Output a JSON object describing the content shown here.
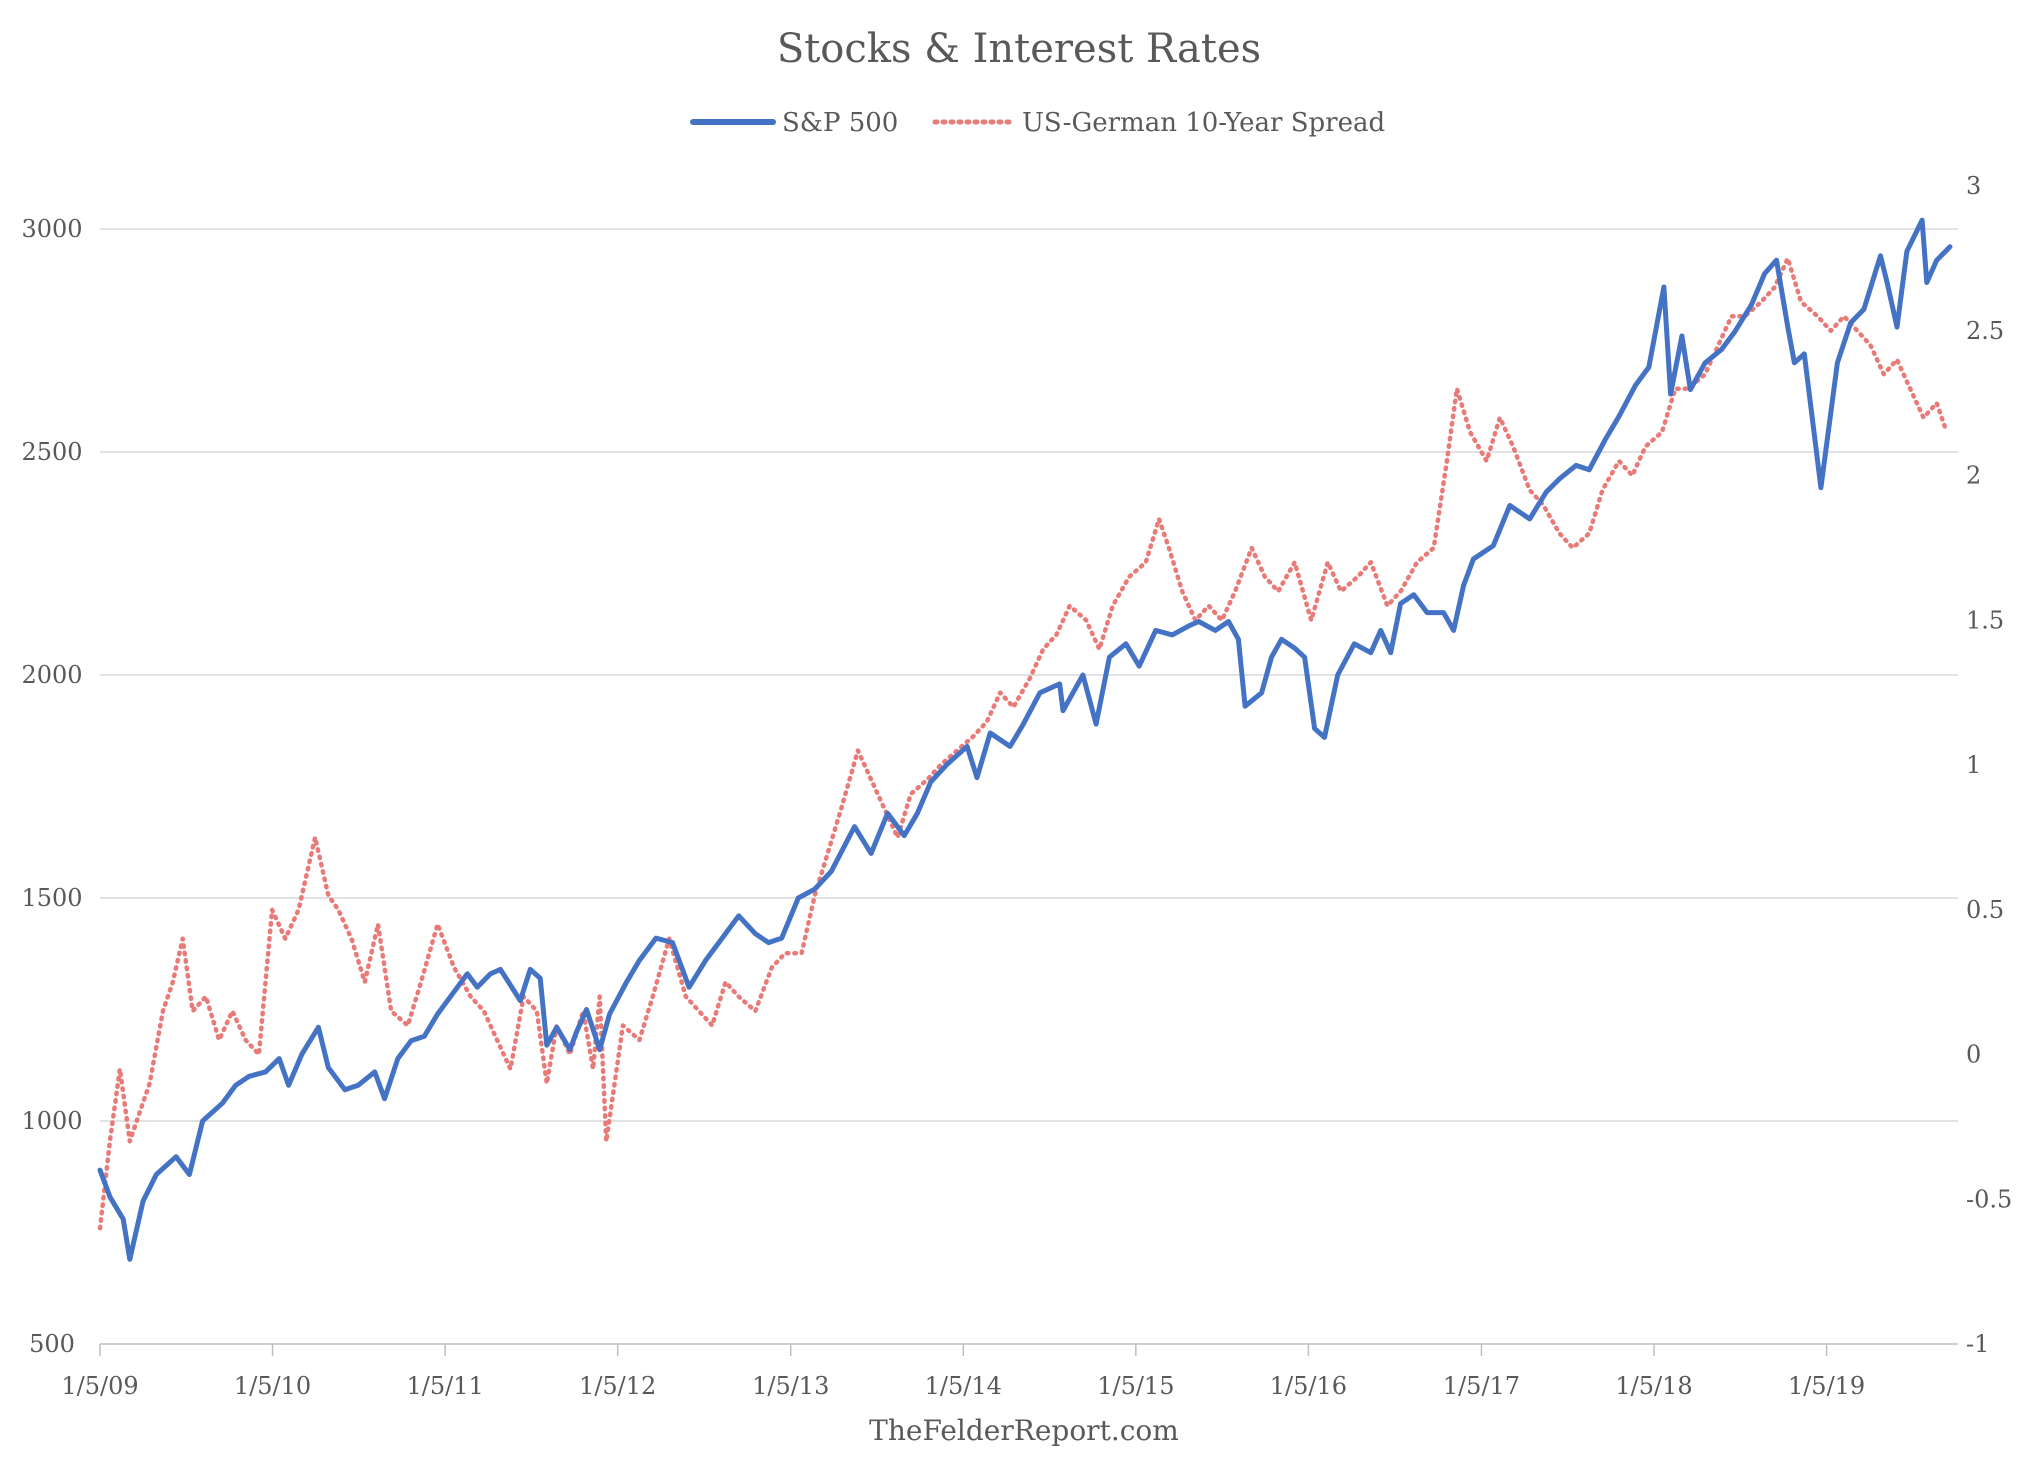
{
  "chart_data": {
    "type": "line",
    "title": "Stocks & Interest Rates",
    "source": "TheFelderReport.com",
    "legend_position": "top",
    "grid": true,
    "x_tick_labels": [
      "1/5/09",
      "1/5/10",
      "1/5/11",
      "1/5/12",
      "1/5/13",
      "1/5/14",
      "1/5/15",
      "1/5/16",
      "1/5/17",
      "1/5/18",
      "1/5/19"
    ],
    "y_left": {
      "ticks": [
        "500",
        "1000",
        "1500",
        "2000",
        "2500",
        "3000"
      ],
      "min": 500,
      "max": 3000
    },
    "y_right": {
      "ticks": [
        "-1",
        "-0.5",
        "0",
        "0.5",
        "1",
        "1.5",
        "2",
        "2.5",
        "3"
      ],
      "min": -1,
      "max": 3
    },
    "series": [
      {
        "name": "S&P 500",
        "axis": "left",
        "color": "#4472c4",
        "style": "solid",
        "x": [
          "2009-01-05",
          "2009-01-26",
          "2009-02-23",
          "2009-03-09",
          "2009-04-06",
          "2009-05-04",
          "2009-06-15",
          "2009-07-13",
          "2009-08-10",
          "2009-09-21",
          "2009-10-19",
          "2009-11-16",
          "2009-12-21",
          "2010-01-19",
          "2010-02-08",
          "2010-03-08",
          "2010-04-12",
          "2010-05-03",
          "2010-05-24",
          "2010-06-07",
          "2010-07-05",
          "2010-08-09",
          "2010-08-30",
          "2010-09-27",
          "2010-10-25",
          "2010-11-22",
          "2010-12-20",
          "2011-01-24",
          "2011-02-21",
          "2011-03-14",
          "2011-04-11",
          "2011-05-02",
          "2011-06-13",
          "2011-07-04",
          "2011-07-25",
          "2011-08-08",
          "2011-08-29",
          "2011-09-26",
          "2011-10-10",
          "2011-10-31",
          "2011-11-28",
          "2011-12-19",
          "2012-01-23",
          "2012-02-20",
          "2012-03-26",
          "2012-04-30",
          "2012-06-04",
          "2012-07-09",
          "2012-08-13",
          "2012-09-17",
          "2012-10-22",
          "2012-11-19",
          "2012-12-17",
          "2013-01-21",
          "2013-02-25",
          "2013-04-01",
          "2013-05-20",
          "2013-06-24",
          "2013-07-29",
          "2013-09-02",
          "2013-09-30",
          "2013-10-28",
          "2013-12-02",
          "2014-01-13",
          "2014-02-03",
          "2014-03-03",
          "2014-04-14",
          "2014-05-12",
          "2014-06-16",
          "2014-07-28",
          "2014-08-04",
          "2014-09-15",
          "2014-10-13",
          "2014-11-10",
          "2014-12-15",
          "2015-01-12",
          "2015-02-16",
          "2015-03-23",
          "2015-04-27",
          "2015-05-18",
          "2015-06-22",
          "2015-07-20",
          "2015-08-10",
          "2015-08-24",
          "2015-09-28",
          "2015-10-19",
          "2015-11-09",
          "2015-12-07",
          "2015-12-28",
          "2016-01-18",
          "2016-02-08",
          "2016-03-07",
          "2016-04-11",
          "2016-05-16",
          "2016-06-06",
          "2016-06-27",
          "2016-07-18",
          "2016-08-15",
          "2016-09-12",
          "2016-10-17",
          "2016-11-07",
          "2016-11-28",
          "2016-12-19",
          "2017-01-30",
          "2017-03-06",
          "2017-04-17",
          "2017-05-22",
          "2017-06-19",
          "2017-07-24",
          "2017-08-21",
          "2017-09-25",
          "2017-10-23",
          "2017-11-27",
          "2017-12-25",
          "2018-01-26",
          "2018-02-09",
          "2018-03-05",
          "2018-03-23",
          "2018-04-23",
          "2018-05-28",
          "2018-06-25",
          "2018-07-30",
          "2018-08-27",
          "2018-09-21",
          "2018-10-15",
          "2018-10-29",
          "2018-11-19",
          "2018-12-24",
          "2019-01-28",
          "2019-02-25",
          "2019-03-25",
          "2019-04-29",
          "2019-05-13",
          "2019-06-03",
          "2019-06-24",
          "2019-07-26",
          "2019-08-05",
          "2019-08-26",
          "2019-09-23"
        ],
        "values": [
          890,
          830,
          780,
          690,
          820,
          880,
          920,
          880,
          1000,
          1040,
          1080,
          1100,
          1110,
          1140,
          1080,
          1150,
          1210,
          1120,
          1090,
          1070,
          1080,
          1110,
          1050,
          1140,
          1180,
          1190,
          1240,
          1290,
          1330,
          1300,
          1330,
          1340,
          1270,
          1340,
          1320,
          1170,
          1210,
          1160,
          1200,
          1250,
          1160,
          1240,
          1310,
          1360,
          1410,
          1400,
          1300,
          1360,
          1410,
          1460,
          1420,
          1400,
          1410,
          1500,
          1520,
          1560,
          1660,
          1600,
          1690,
          1640,
          1690,
          1760,
          1800,
          1840,
          1770,
          1870,
          1840,
          1890,
          1960,
          1980,
          1920,
          2000,
          1890,
          2040,
          2070,
          2020,
          2100,
          2090,
          2110,
          2120,
          2100,
          2120,
          2080,
          1930,
          1960,
          2040,
          2080,
          2060,
          2040,
          1880,
          1860,
          2000,
          2070,
          2050,
          2100,
          2050,
          2160,
          2180,
          2140,
          2140,
          2100,
          2200,
          2260,
          2290,
          2380,
          2350,
          2410,
          2440,
          2470,
          2460,
          2530,
          2580,
          2650,
          2690,
          2870,
          2630,
          2760,
          2640,
          2700,
          2730,
          2770,
          2830,
          2900,
          2930,
          2780,
          2700,
          2720,
          2420,
          2700,
          2790,
          2820,
          2940,
          2880,
          2780,
          2950,
          3020,
          2880,
          2930,
          2960
        ]
      },
      {
        "name": "US-German 10-Year Spread",
        "axis": "right",
        "color": "#e87b78",
        "style": "dotted",
        "x": [
          "2009-01-05",
          "2009-01-26",
          "2009-02-16",
          "2009-03-09",
          "2009-03-30",
          "2009-04-20",
          "2009-05-18",
          "2009-06-08",
          "2009-06-29",
          "2009-07-20",
          "2009-08-17",
          "2009-09-14",
          "2009-10-12",
          "2009-11-09",
          "2009-12-07",
          "2010-01-04",
          "2010-02-01",
          "2010-03-01",
          "2010-04-05",
          "2010-05-03",
          "2010-05-24",
          "2010-06-21",
          "2010-07-19",
          "2010-08-16",
          "2010-09-13",
          "2010-10-18",
          "2010-11-15",
          "2010-12-20",
          "2011-01-24",
          "2011-02-28",
          "2011-03-28",
          "2011-04-25",
          "2011-05-23",
          "2011-06-20",
          "2011-07-18",
          "2011-08-08",
          "2011-08-29",
          "2011-09-26",
          "2011-10-24",
          "2011-11-14",
          "2011-11-28",
          "2011-12-12",
          "2012-01-16",
          "2012-02-20",
          "2012-03-19",
          "2012-04-23",
          "2012-05-28",
          "2012-06-25",
          "2012-07-23",
          "2012-08-20",
          "2012-09-17",
          "2012-10-22",
          "2012-11-26",
          "2012-12-24",
          "2013-01-28",
          "2013-02-25",
          "2013-03-25",
          "2013-04-22",
          "2013-05-27",
          "2013-06-24",
          "2013-07-22",
          "2013-08-19",
          "2013-09-16",
          "2013-10-21",
          "2013-11-18",
          "2013-12-23",
          "2014-01-27",
          "2014-02-24",
          "2014-03-24",
          "2014-04-21",
          "2014-05-26",
          "2014-06-23",
          "2014-07-21",
          "2014-08-18",
          "2014-09-22",
          "2014-10-20",
          "2014-11-17",
          "2014-12-22",
          "2015-01-26",
          "2015-02-23",
          "2015-03-16",
          "2015-04-13",
          "2015-05-11",
          "2015-06-08",
          "2015-07-06",
          "2015-08-03",
          "2015-09-07",
          "2015-10-05",
          "2015-11-02",
          "2015-12-07",
          "2016-01-11",
          "2016-02-15",
          "2016-03-14",
          "2016-04-18",
          "2016-05-16",
          "2016-06-20",
          "2016-07-18",
          "2016-08-22",
          "2016-09-26",
          "2016-10-24",
          "2016-11-14",
          "2016-12-12",
          "2017-01-16",
          "2017-02-13",
          "2017-03-13",
          "2017-04-17",
          "2017-05-15",
          "2017-06-19",
          "2017-07-17",
          "2017-08-21",
          "2017-09-18",
          "2017-10-23",
          "2017-11-20",
          "2017-12-18",
          "2018-01-22",
          "2018-02-19",
          "2018-03-19",
          "2018-04-23",
          "2018-05-21",
          "2018-06-18",
          "2018-07-16",
          "2018-08-20",
          "2018-09-17",
          "2018-10-15",
          "2018-11-12",
          "2018-12-17",
          "2019-01-14",
          "2019-02-11",
          "2019-03-11",
          "2019-04-08",
          "2019-05-06",
          "2019-06-03",
          "2019-07-01",
          "2019-07-29",
          "2019-08-26",
          "2019-09-16"
        ],
        "values": [
          -0.6,
          -0.3,
          -0.05,
          -0.3,
          -0.2,
          -0.1,
          0.15,
          0.25,
          0.4,
          0.15,
          0.2,
          0.05,
          0.15,
          0.05,
          0.0,
          0.5,
          0.4,
          0.5,
          0.75,
          0.55,
          0.5,
          0.4,
          0.25,
          0.45,
          0.15,
          0.1,
          0.25,
          0.45,
          0.3,
          0.2,
          0.15,
          0.05,
          -0.05,
          0.2,
          0.15,
          -0.1,
          0.1,
          0.0,
          0.15,
          -0.05,
          0.2,
          -0.3,
          0.1,
          0.05,
          0.2,
          0.4,
          0.2,
          0.15,
          0.1,
          0.25,
          0.2,
          0.15,
          0.3,
          0.35,
          0.35,
          0.55,
          0.7,
          0.85,
          1.05,
          0.95,
          0.85,
          0.75,
          0.9,
          0.95,
          1.0,
          1.05,
          1.1,
          1.15,
          1.25,
          1.2,
          1.3,
          1.4,
          1.45,
          1.55,
          1.5,
          1.4,
          1.55,
          1.65,
          1.7,
          1.85,
          1.75,
          1.6,
          1.5,
          1.55,
          1.5,
          1.6,
          1.75,
          1.65,
          1.6,
          1.7,
          1.5,
          1.7,
          1.6,
          1.65,
          1.7,
          1.55,
          1.6,
          1.7,
          1.75,
          2.05,
          2.3,
          2.15,
          2.05,
          2.2,
          2.1,
          1.95,
          1.9,
          1.8,
          1.75,
          1.8,
          1.95,
          2.05,
          2.0,
          2.1,
          2.15,
          2.3,
          2.3,
          2.35,
          2.45,
          2.55,
          2.55,
          2.6,
          2.65,
          2.75,
          2.6,
          2.55,
          2.5,
          2.55,
          2.5,
          2.45,
          2.35,
          2.4,
          2.3,
          2.2,
          2.25,
          2.15
        ]
      }
    ]
  }
}
